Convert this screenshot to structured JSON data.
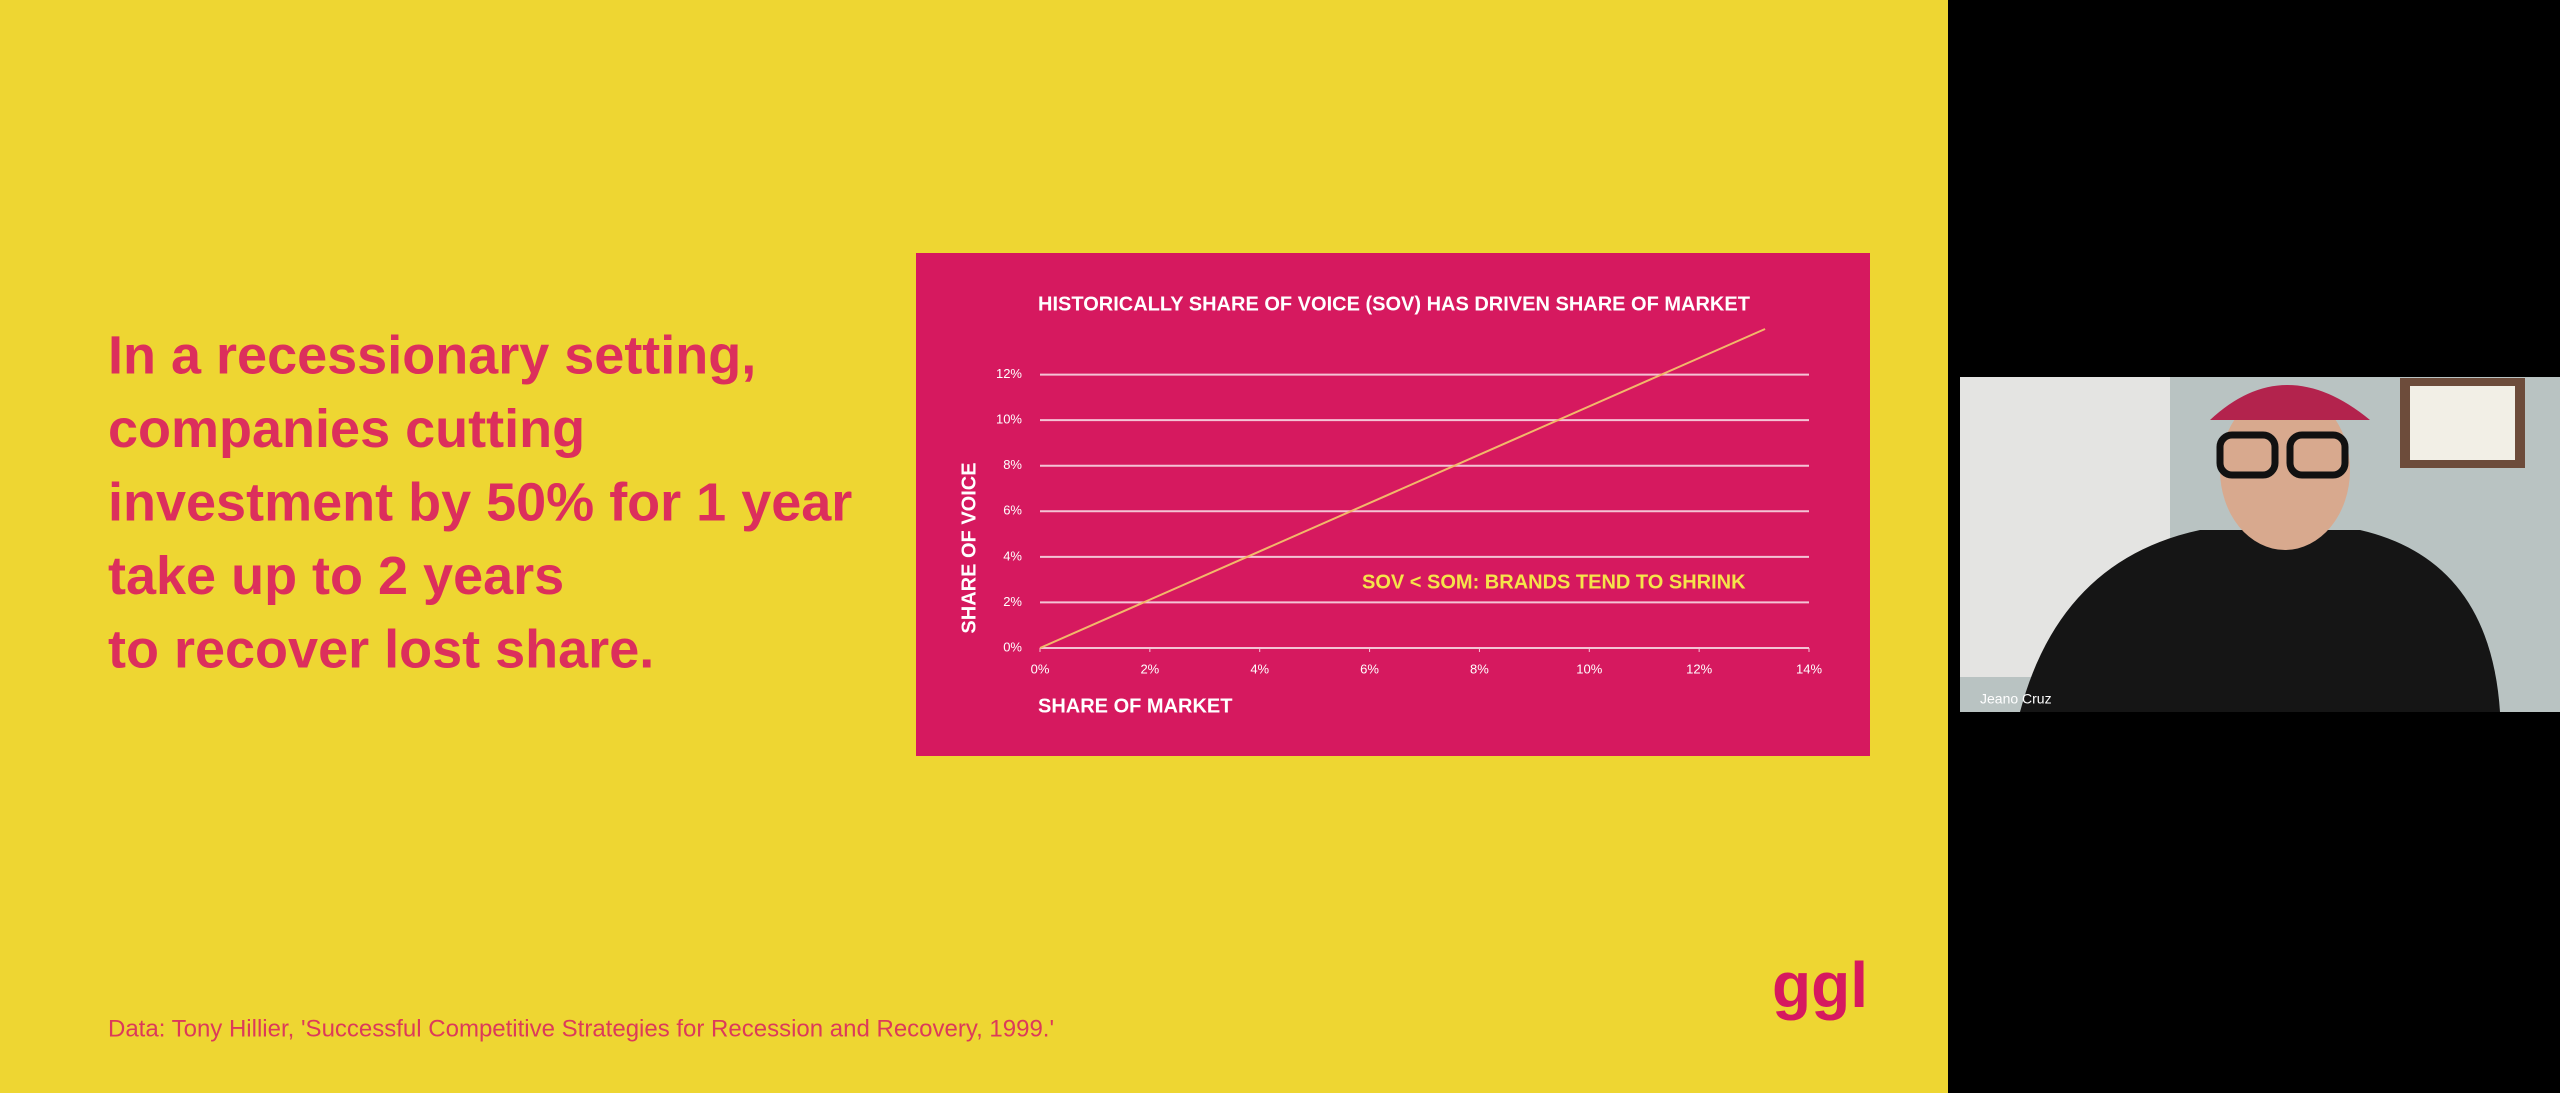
{
  "slide": {
    "headline": [
      "In a recessionary setting,",
      "companies cutting",
      "investment by 50% for 1 year",
      "take up to 2 years",
      "to recover lost share."
    ],
    "source": "Data: Tony Hillier, 'Successful Competitive Strategies for Recession and Recovery, 1999.'",
    "logo": "ggl"
  },
  "chart_data": {
    "type": "line",
    "title": "HISTORICALLY SHARE OF VOICE (SOV) HAS DRIVEN SHARE OF MARKET",
    "x_label": "SHARE OF MARKET",
    "y_label": "SHARE OF VOICE",
    "annotation": "SOV < SOM: BRANDS TEND TO SHRINK",
    "x": [
      0,
      13.2
    ],
    "values": [
      0,
      14
    ],
    "color": "#f2b86a",
    "xlim": [
      0,
      14
    ],
    "ylim": [
      0,
      14
    ],
    "xticks": [
      {
        "value": 0,
        "label": "0%"
      },
      {
        "value": 2,
        "label": "2%"
      },
      {
        "value": 4,
        "label": "4%"
      },
      {
        "value": 6,
        "label": "6%"
      },
      {
        "value": 8,
        "label": "8%"
      },
      {
        "value": 10,
        "label": "10%"
      },
      {
        "value": 12,
        "label": "12%"
      },
      {
        "value": 14,
        "label": "14%"
      }
    ],
    "yticks": [
      {
        "value": 0,
        "label": "0%"
      },
      {
        "value": 2,
        "label": "2%"
      },
      {
        "value": 4,
        "label": "4%"
      },
      {
        "value": 6,
        "label": "6%"
      },
      {
        "value": 8,
        "label": "8%"
      },
      {
        "value": 10,
        "label": "10%"
      },
      {
        "value": 12,
        "label": "12%"
      }
    ],
    "grid": true
  },
  "participant": {
    "name": "Jeano Cruz"
  }
}
